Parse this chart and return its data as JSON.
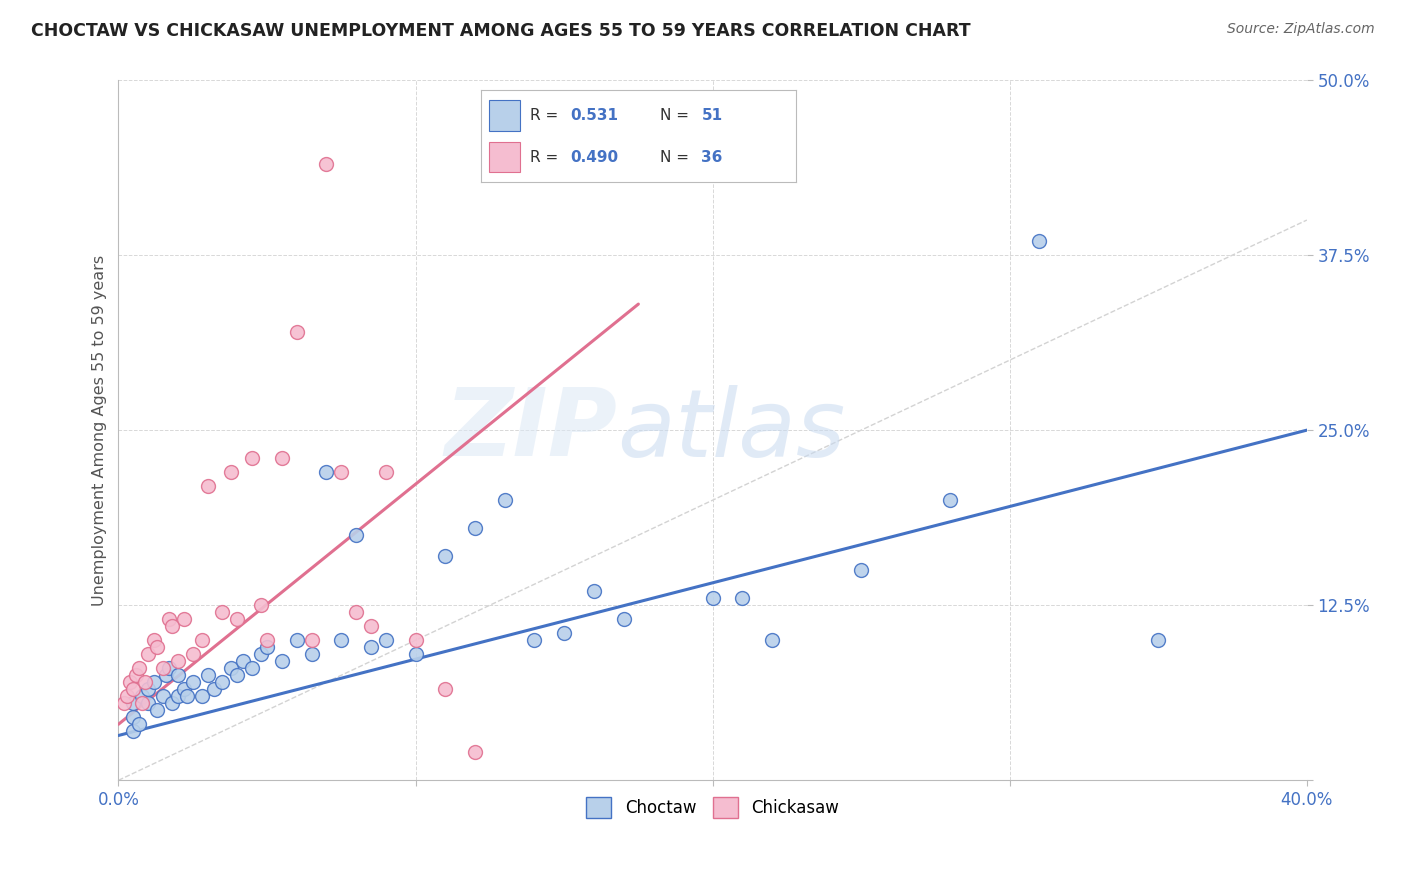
{
  "title": "CHOCTAW VS CHICKASAW UNEMPLOYMENT AMONG AGES 55 TO 59 YEARS CORRELATION CHART",
  "source": "Source: ZipAtlas.com",
  "ylabel": "Unemployment Among Ages 55 to 59 years",
  "xlim": [
    0.0,
    0.4
  ],
  "ylim": [
    0.0,
    0.5
  ],
  "choctaw_color": "#b8d0ea",
  "chickasaw_color": "#f5bdd0",
  "choctaw_line_color": "#4472c4",
  "chickasaw_line_color": "#e07090",
  "diag_line_color": "#c8c8c8",
  "R_choctaw": 0.531,
  "N_choctaw": 51,
  "R_chickasaw": 0.49,
  "N_chickasaw": 36,
  "watermark_zip": "ZIP",
  "watermark_atlas": "atlas",
  "choctaw_x": [
    0.005,
    0.005,
    0.005,
    0.007,
    0.008,
    0.01,
    0.01,
    0.012,
    0.013,
    0.015,
    0.016,
    0.017,
    0.018,
    0.02,
    0.02,
    0.022,
    0.023,
    0.025,
    0.028,
    0.03,
    0.032,
    0.035,
    0.038,
    0.04,
    0.042,
    0.045,
    0.048,
    0.05,
    0.055,
    0.06,
    0.065,
    0.07,
    0.075,
    0.08,
    0.085,
    0.09,
    0.1,
    0.11,
    0.12,
    0.13,
    0.14,
    0.15,
    0.16,
    0.17,
    0.2,
    0.21,
    0.22,
    0.25,
    0.28,
    0.31,
    0.35
  ],
  "choctaw_y": [
    0.035,
    0.045,
    0.055,
    0.04,
    0.06,
    0.055,
    0.065,
    0.07,
    0.05,
    0.06,
    0.075,
    0.08,
    0.055,
    0.06,
    0.075,
    0.065,
    0.06,
    0.07,
    0.06,
    0.075,
    0.065,
    0.07,
    0.08,
    0.075,
    0.085,
    0.08,
    0.09,
    0.095,
    0.085,
    0.1,
    0.09,
    0.22,
    0.1,
    0.175,
    0.095,
    0.1,
    0.09,
    0.16,
    0.18,
    0.2,
    0.1,
    0.105,
    0.135,
    0.115,
    0.13,
    0.13,
    0.1,
    0.15,
    0.2,
    0.385,
    0.1
  ],
  "chickasaw_x": [
    0.002,
    0.003,
    0.004,
    0.005,
    0.006,
    0.007,
    0.008,
    0.009,
    0.01,
    0.012,
    0.013,
    0.015,
    0.017,
    0.018,
    0.02,
    0.022,
    0.025,
    0.028,
    0.03,
    0.035,
    0.038,
    0.04,
    0.045,
    0.048,
    0.05,
    0.055,
    0.06,
    0.065,
    0.07,
    0.075,
    0.08,
    0.085,
    0.09,
    0.1,
    0.11,
    0.12
  ],
  "chickasaw_y": [
    0.055,
    0.06,
    0.07,
    0.065,
    0.075,
    0.08,
    0.055,
    0.07,
    0.09,
    0.1,
    0.095,
    0.08,
    0.115,
    0.11,
    0.085,
    0.115,
    0.09,
    0.1,
    0.21,
    0.12,
    0.22,
    0.115,
    0.23,
    0.125,
    0.1,
    0.23,
    0.32,
    0.1,
    0.44,
    0.22,
    0.12,
    0.11,
    0.22,
    0.1,
    0.065,
    0.02
  ],
  "choctaw_trend_x": [
    0.0,
    0.4
  ],
  "choctaw_trend_y": [
    0.032,
    0.25
  ],
  "chickasaw_trend_x": [
    0.0,
    0.175
  ],
  "chickasaw_trend_y": [
    0.04,
    0.34
  ]
}
